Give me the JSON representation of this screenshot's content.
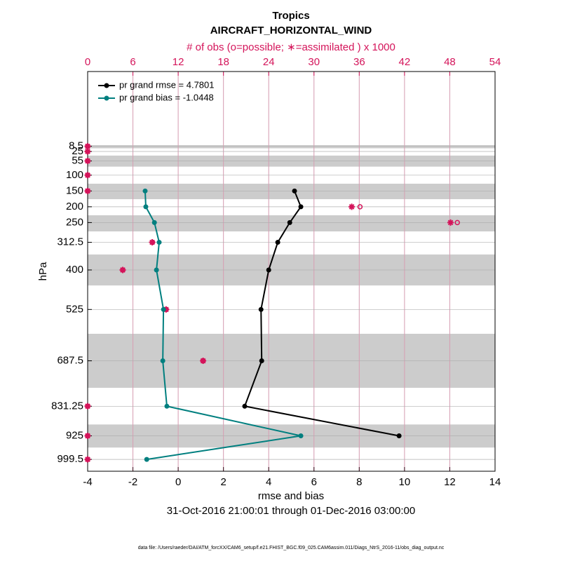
{
  "chart_data": {
    "type": "line",
    "title": "Tropics",
    "subtitle": "AIRCRAFT_HORIZONTAL_WIND",
    "top_axis_label": "# of obs (o=possible; ∗=assimilated ) x 1000",
    "x_label": "rmse and bias",
    "y_label": "hPa",
    "date_range": "31-Oct-2016 21:00:01 through 01-Dec-2016 03:00:00",
    "footnote": "data file: /Users/raeder/DAI/ATM_forcXX/CAM6_setup/f.e21.FHIST_BGC.f09_025.CAM6assim.011/Diags_NtrS_2016-11/obs_diag_output.nc",
    "xlim": [
      -4,
      14
    ],
    "xticks": [
      -4,
      -2,
      0,
      2,
      4,
      6,
      8,
      10,
      12,
      14
    ],
    "x2lim": [
      0,
      54
    ],
    "x2ticks": [
      0,
      6,
      12,
      18,
      24,
      30,
      36,
      42,
      48,
      54
    ],
    "ylim": [
      1037,
      -228
    ],
    "yticks": [
      8.5,
      25,
      55,
      100,
      150,
      200,
      250,
      312.5,
      400,
      525,
      687.5,
      831.25,
      925,
      999.5
    ],
    "bands": [
      [
        5,
        15
      ],
      [
        38,
        73
      ],
      [
        127,
        176
      ],
      [
        227,
        278
      ],
      [
        351,
        449
      ],
      [
        602,
        773
      ],
      [
        889,
        962
      ]
    ],
    "grid": true,
    "series": [
      {
        "name": "pr grand rmse = 4.7801",
        "color": "#000000",
        "values": [
          null,
          null,
          null,
          null,
          5.14,
          5.42,
          4.93,
          4.4,
          4.0,
          3.66,
          3.69,
          2.94,
          9.76,
          null
        ]
      },
      {
        "name": "pr grand bias = -1.0448",
        "color": "#007f7f",
        "values": [
          null,
          null,
          null,
          null,
          -1.46,
          -1.43,
          -1.05,
          -0.84,
          -0.96,
          -0.65,
          -0.68,
          -0.5,
          5.42,
          -1.39
        ]
      }
    ],
    "obs_color": "#d4145a",
    "obs_possible": [
      0,
      0,
      0,
      0,
      0,
      36.1,
      49.0,
      8.6,
      4.65,
      10.4,
      15.3,
      0,
      0,
      0
    ],
    "obs_assimilated": [
      0,
      0,
      0,
      0,
      0,
      35.0,
      48.1,
      8.55,
      4.65,
      10.4,
      15.3,
      0,
      0,
      0
    ]
  }
}
